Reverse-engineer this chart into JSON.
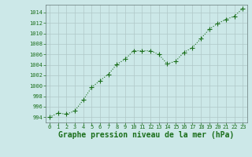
{
  "x": [
    0,
    1,
    2,
    3,
    4,
    5,
    6,
    7,
    8,
    9,
    10,
    11,
    12,
    13,
    14,
    15,
    16,
    17,
    18,
    19,
    20,
    21,
    22,
    23
  ],
  "y": [
    994.0,
    994.8,
    994.6,
    995.2,
    997.3,
    999.7,
    1001.0,
    1002.2,
    1004.1,
    1005.1,
    1006.7,
    1006.7,
    1006.7,
    1006.0,
    1004.2,
    1004.7,
    1006.4,
    1007.3,
    1009.0,
    1010.8,
    1011.9,
    1012.7,
    1013.3,
    1014.8
  ],
  "line_color": "#1a6e1a",
  "marker": "+",
  "marker_size": 4,
  "bg_color": "#cce8e8",
  "grid_color": "#b0c8c8",
  "ylim": [
    993,
    1015.5
  ],
  "xlim": [
    -0.5,
    23.5
  ],
  "yticks": [
    994,
    996,
    998,
    1000,
    1002,
    1004,
    1006,
    1008,
    1010,
    1012,
    1014
  ],
  "xticks": [
    0,
    1,
    2,
    3,
    4,
    5,
    6,
    7,
    8,
    9,
    10,
    11,
    12,
    13,
    14,
    15,
    16,
    17,
    18,
    19,
    20,
    21,
    22,
    23
  ],
  "xlabel": "Graphe pression niveau de la mer (hPa)",
  "xlabel_color": "#1a6e1a",
  "tick_color": "#1a6e1a",
  "tick_fontsize": 5.0,
  "xlabel_fontsize": 7.0,
  "line_width": 0.8
}
